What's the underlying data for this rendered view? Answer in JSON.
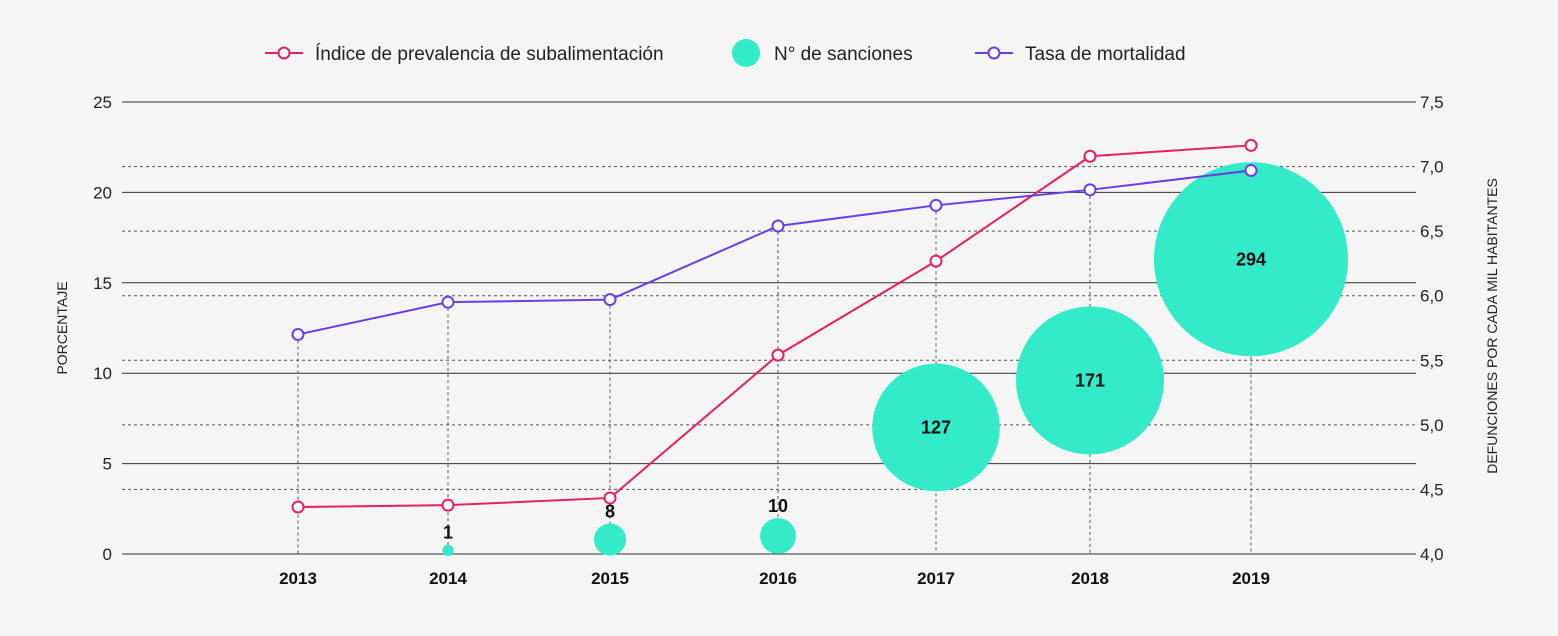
{
  "chart_data": {
    "type": "line",
    "categories": [
      "2013",
      "2014",
      "2015",
      "2016",
      "2017",
      "2018",
      "2019"
    ],
    "series": [
      {
        "name": "Índice de prevalencia de subalimentación",
        "axis": "left",
        "color": "#e91e63",
        "values": [
          2.6,
          2.7,
          3.1,
          11.0,
          16.2,
          22.0,
          22.6
        ]
      },
      {
        "name": "Tasa de mortalidad",
        "axis": "right",
        "color": "#6a3de8",
        "values": [
          5.7,
          5.95,
          5.97,
          6.54,
          6.7,
          6.82,
          6.97
        ]
      }
    ],
    "bubbles": {
      "name": "N° de sanciones",
      "color": "#33ebc9",
      "categories": [
        "2014",
        "2015",
        "2016",
        "2017",
        "2018",
        "2019"
      ],
      "values": [
        1,
        8,
        10,
        127,
        171,
        294
      ],
      "labels": [
        "1",
        "8",
        "10",
        "127",
        "171",
        "294"
      ],
      "y": [
        0.2,
        0.8,
        1.0,
        7.0,
        9.6,
        16.3
      ]
    },
    "y_left": {
      "label": "PORCENTAJE",
      "ylim": [
        0,
        25
      ],
      "ticks": [
        0,
        5,
        10,
        15,
        20,
        25
      ],
      "tick_labels": [
        "0",
        "5",
        "10",
        "15",
        "20",
        "25"
      ]
    },
    "y_right": {
      "label": "DEFUNCIONES POR CADA MIL HABITANTES",
      "ylim": [
        4.0,
        7.5
      ],
      "ticks": [
        4.0,
        4.5,
        5.0,
        5.5,
        6.0,
        6.5,
        7.0,
        7.5
      ],
      "tick_labels": [
        "4,0",
        "4,5",
        "5,0",
        "5,5",
        "6,0",
        "6,5",
        "7,0",
        "7,5"
      ]
    },
    "legend": [
      {
        "label": "Índice de prevalencia de subalimentación",
        "kind": "line",
        "color": "#e91e63"
      },
      {
        "label": "N° de sanciones",
        "kind": "bubble",
        "color": "#33ebc9"
      },
      {
        "label": "Tasa de mortalidad",
        "kind": "line",
        "color": "#6a3de8"
      }
    ],
    "legend_position": "top-center",
    "grid": true
  }
}
